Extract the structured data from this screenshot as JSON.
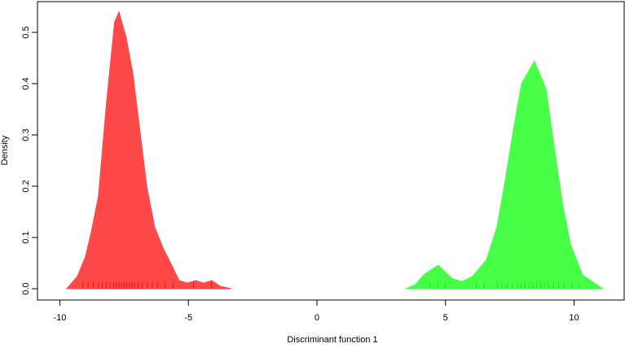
{
  "chart_data": {
    "type": "area",
    "xlabel": "Discriminant function 1",
    "ylabel": "Density",
    "xlim": [
      -10.87,
      11.95
    ],
    "ylim": [
      -0.022,
      0.56
    ],
    "xticks": [
      -10,
      -5,
      0,
      5,
      10
    ],
    "yticks": [
      {
        "value": 0,
        "label": "0.0"
      },
      0.1,
      0.2,
      0.3,
      0.4,
      0.5
    ],
    "series": [
      {
        "color": "#ff4848",
        "x": [
          -9.73,
          -9.32,
          -9.0,
          -8.78,
          -8.5,
          -8.19,
          -7.87,
          -7.7,
          -7.42,
          -7.16,
          -6.94,
          -6.62,
          -6.31,
          -5.99,
          -5.67,
          -5.36,
          -5.04,
          -4.72,
          -4.41,
          -4.09,
          -3.77,
          -3.33
        ],
        "values": [
          0,
          0.024,
          0.063,
          0.11,
          0.18,
          0.36,
          0.52,
          0.54,
          0.49,
          0.42,
          0.33,
          0.2,
          0.12,
          0.08,
          0.048,
          0.016,
          0.011,
          0.016,
          0.011,
          0.016,
          0.005,
          0
        ],
        "rug": [
          -9.1,
          -8.9,
          -8.7,
          -8.5,
          -8.35,
          -8.2,
          -8.05,
          -7.9,
          -7.8,
          -7.7,
          -7.6,
          -7.5,
          -7.4,
          -7.3,
          -7.2,
          -7.1,
          -6.95,
          -6.8,
          -6.6,
          -6.4,
          -6.2,
          -5.9,
          -5.6,
          -4.8,
          -4.1
        ]
      },
      {
        "color": "#48ff48",
        "x": [
          3.45,
          3.83,
          4.15,
          4.72,
          5.26,
          5.64,
          6.05,
          6.59,
          7.0,
          7.32,
          7.64,
          7.96,
          8.46,
          8.91,
          9.22,
          9.54,
          9.86,
          10.33,
          11.12
        ],
        "values": [
          0,
          0.008,
          0.027,
          0.046,
          0.02,
          0.014,
          0.024,
          0.056,
          0.12,
          0.21,
          0.31,
          0.4,
          0.444,
          0.39,
          0.28,
          0.17,
          0.087,
          0.027,
          0
        ],
        "rug": [
          4.4,
          4.7,
          5.0,
          6.2,
          6.5,
          7.0,
          7.2,
          7.4,
          7.6,
          7.8,
          7.95,
          8.1,
          8.25,
          8.4,
          8.55,
          8.7,
          8.85,
          9.0,
          9.2,
          9.4,
          9.6,
          9.9,
          10.2
        ]
      }
    ]
  }
}
